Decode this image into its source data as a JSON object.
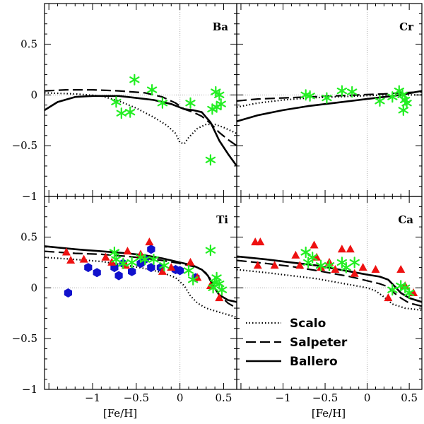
{
  "chart_data": {
    "type": "scatter",
    "xlabel": "[Fe/H]",
    "xlim": [
      -1.55,
      0.65
    ],
    "ylim": [
      -1.0,
      0.9
    ],
    "x_ticks": [
      -1,
      -0.5,
      0,
      0.5
    ],
    "x_tick_labels": [
      "−1",
      "−0.5",
      "0",
      "0.5"
    ],
    "y_ticks": [
      -1,
      -0.5,
      0,
      0.5
    ],
    "y_tick_labels": [
      "−1",
      "−0.5",
      "0",
      "0.5"
    ],
    "colors": {
      "stars": "#22ee22",
      "triangles": "#ee1111",
      "hexagons": "#1111cc"
    },
    "legend": {
      "position": "bottom-right panel",
      "entries": [
        {
          "label": "Scalo",
          "style": "dotted"
        },
        {
          "label": "Salpeter",
          "style": "dashed"
        },
        {
          "label": "Ballero",
          "style": "solid"
        }
      ]
    },
    "panels": [
      {
        "label": "Ba",
        "stars": [
          [
            -0.73,
            -0.07
          ],
          [
            -0.67,
            -0.18
          ],
          [
            -0.57,
            -0.17
          ],
          [
            -0.52,
            0.15
          ],
          [
            -0.32,
            0.05
          ],
          [
            -0.2,
            -0.08
          ],
          [
            0.12,
            -0.08
          ],
          [
            0.35,
            -0.64
          ],
          [
            0.37,
            -0.14
          ],
          [
            0.41,
            0.03
          ],
          [
            0.42,
            -0.12
          ],
          [
            0.45,
            0.0
          ],
          [
            0.47,
            -0.09
          ]
        ],
        "triangles": [],
        "hexagons": [],
        "lines": {
          "scalo": [
            [
              -1.55,
              0.02
            ],
            [
              -1.2,
              0.01
            ],
            [
              -0.9,
              -0.01
            ],
            [
              -0.7,
              -0.06
            ],
            [
              -0.5,
              -0.13
            ],
            [
              -0.3,
              -0.22
            ],
            [
              -0.15,
              -0.3
            ],
            [
              -0.05,
              -0.38
            ],
            [
              0.0,
              -0.47
            ],
            [
              0.05,
              -0.48
            ],
            [
              0.1,
              -0.42
            ],
            [
              0.2,
              -0.33
            ],
            [
              0.3,
              -0.29
            ],
            [
              0.4,
              -0.29
            ],
            [
              0.5,
              -0.32
            ],
            [
              0.65,
              -0.38
            ]
          ],
          "salpeter": [
            [
              -1.55,
              0.04
            ],
            [
              -1.3,
              0.05
            ],
            [
              -1.0,
              0.05
            ],
            [
              -0.7,
              0.04
            ],
            [
              -0.4,
              0.02
            ],
            [
              -0.2,
              -0.02
            ],
            [
              -0.05,
              -0.08
            ],
            [
              0.05,
              -0.14
            ],
            [
              0.15,
              -0.17
            ],
            [
              0.25,
              -0.21
            ],
            [
              0.35,
              -0.28
            ],
            [
              0.45,
              -0.37
            ],
            [
              0.55,
              -0.44
            ],
            [
              0.65,
              -0.5
            ]
          ],
          "ballero": [
            [
              -1.55,
              -0.15
            ],
            [
              -1.4,
              -0.07
            ],
            [
              -1.2,
              -0.02
            ],
            [
              -1.0,
              -0.01
            ],
            [
              -0.7,
              -0.01
            ],
            [
              -0.5,
              -0.03
            ],
            [
              -0.3,
              -0.05
            ],
            [
              -0.1,
              -0.09
            ],
            [
              0.05,
              -0.14
            ],
            [
              0.15,
              -0.15
            ],
            [
              0.25,
              -0.17
            ],
            [
              0.35,
              -0.27
            ],
            [
              0.45,
              -0.45
            ],
            [
              0.55,
              -0.58
            ],
            [
              0.65,
              -0.7
            ]
          ]
        }
      },
      {
        "label": "Cr",
        "stars": [
          [
            -0.73,
            0.0
          ],
          [
            -0.68,
            -0.01
          ],
          [
            -0.48,
            -0.03
          ],
          [
            -0.3,
            0.04
          ],
          [
            -0.18,
            0.03
          ],
          [
            0.15,
            -0.06
          ],
          [
            0.3,
            -0.02
          ],
          [
            0.38,
            0.04
          ],
          [
            0.42,
            0.0
          ],
          [
            0.43,
            -0.15
          ],
          [
            0.45,
            -0.05
          ],
          [
            0.47,
            -0.08
          ]
        ],
        "triangles": [],
        "hexagons": [],
        "lines": {
          "scalo": [
            [
              -1.55,
              -0.12
            ],
            [
              -1.3,
              -0.08
            ],
            [
              -1.0,
              -0.05
            ],
            [
              -0.7,
              -0.03
            ],
            [
              -0.4,
              -0.02
            ],
            [
              -0.1,
              -0.01
            ],
            [
              0.2,
              0.0
            ],
            [
              0.4,
              0.0
            ],
            [
              0.65,
              0.0
            ]
          ],
          "salpeter": [
            [
              -1.55,
              -0.06
            ],
            [
              -1.3,
              -0.04
            ],
            [
              -1.0,
              -0.03
            ],
            [
              -0.7,
              -0.02
            ],
            [
              -0.4,
              -0.01
            ],
            [
              -0.1,
              0.0
            ],
            [
              0.2,
              0.01
            ],
            [
              0.4,
              0.02
            ],
            [
              0.65,
              0.03
            ]
          ],
          "ballero": [
            [
              -1.55,
              -0.26
            ],
            [
              -1.3,
              -0.2
            ],
            [
              -1.0,
              -0.15
            ],
            [
              -0.7,
              -0.11
            ],
            [
              -0.4,
              -0.08
            ],
            [
              -0.1,
              -0.05
            ],
            [
              0.2,
              -0.02
            ],
            [
              0.4,
              0.0
            ],
            [
              0.65,
              0.04
            ]
          ]
        }
      },
      {
        "label": "Ti",
        "stars": [
          [
            -0.75,
            0.35
          ],
          [
            -0.73,
            0.28
          ],
          [
            -0.65,
            0.24
          ],
          [
            -0.55,
            0.25
          ],
          [
            -0.45,
            0.3
          ],
          [
            -0.4,
            0.28
          ],
          [
            -0.3,
            0.28
          ],
          [
            -0.18,
            0.22
          ],
          [
            0.1,
            0.17
          ],
          [
            0.15,
            0.08
          ],
          [
            0.35,
            0.37
          ],
          [
            0.38,
            0.0
          ],
          [
            0.4,
            0.05
          ],
          [
            0.42,
            0.1
          ],
          [
            0.45,
            0.04
          ],
          [
            0.48,
            -0.02
          ]
        ],
        "triangles": [
          [
            -1.3,
            0.35
          ],
          [
            -1.25,
            0.27
          ],
          [
            -1.1,
            0.28
          ],
          [
            -0.85,
            0.3
          ],
          [
            -0.78,
            0.25
          ],
          [
            -0.62,
            0.22
          ],
          [
            -0.6,
            0.36
          ],
          [
            -0.45,
            0.33
          ],
          [
            -0.35,
            0.45
          ],
          [
            -0.2,
            0.16
          ],
          [
            -0.1,
            0.2
          ],
          [
            0.12,
            0.25
          ],
          [
            0.2,
            0.1
          ],
          [
            0.35,
            0.02
          ],
          [
            0.45,
            -0.1
          ]
        ],
        "hexagons": [
          [
            -1.28,
            -0.05
          ],
          [
            -1.05,
            0.2
          ],
          [
            -0.95,
            0.15
          ],
          [
            -0.75,
            0.2
          ],
          [
            -0.7,
            0.12
          ],
          [
            -0.65,
            0.24
          ],
          [
            -0.55,
            0.16
          ],
          [
            -0.45,
            0.24
          ],
          [
            -0.4,
            0.28
          ],
          [
            -0.33,
            0.38
          ],
          [
            -0.33,
            0.2
          ],
          [
            -0.22,
            0.2
          ],
          [
            -0.05,
            0.18
          ],
          [
            0.0,
            0.17
          ],
          [
            0.18,
            0.1
          ]
        ],
        "lines": {
          "scalo": [
            [
              -1.55,
              0.3
            ],
            [
              -1.2,
              0.28
            ],
            [
              -0.9,
              0.26
            ],
            [
              -0.6,
              0.22
            ],
            [
              -0.4,
              0.19
            ],
            [
              -0.2,
              0.15
            ],
            [
              -0.05,
              0.1
            ],
            [
              0.05,
              0.02
            ],
            [
              0.12,
              -0.08
            ],
            [
              0.2,
              -0.15
            ],
            [
              0.3,
              -0.2
            ],
            [
              0.45,
              -0.24
            ],
            [
              0.65,
              -0.29
            ]
          ],
          "salpeter": [
            [
              -1.55,
              0.36
            ],
            [
              -1.2,
              0.34
            ],
            [
              -0.9,
              0.33
            ],
            [
              -0.6,
              0.31
            ],
            [
              -0.4,
              0.29
            ],
            [
              -0.2,
              0.27
            ],
            [
              0.0,
              0.24
            ],
            [
              0.15,
              0.21
            ],
            [
              0.25,
              0.18
            ],
            [
              0.32,
              0.13
            ],
            [
              0.38,
              0.03
            ],
            [
              0.45,
              -0.07
            ],
            [
              0.55,
              -0.15
            ],
            [
              0.65,
              -0.2
            ]
          ],
          "ballero": [
            [
              -1.55,
              0.41
            ],
            [
              -1.2,
              0.38
            ],
            [
              -0.9,
              0.36
            ],
            [
              -0.6,
              0.34
            ],
            [
              -0.4,
              0.32
            ],
            [
              -0.2,
              0.29
            ],
            [
              0.0,
              0.25
            ],
            [
              0.15,
              0.22
            ],
            [
              0.25,
              0.18
            ],
            [
              0.32,
              0.12
            ],
            [
              0.38,
              0.02
            ],
            [
              0.45,
              -0.07
            ],
            [
              0.55,
              -0.12
            ],
            [
              0.65,
              -0.14
            ]
          ]
        }
      },
      {
        "label": "Ca",
        "stars": [
          [
            -0.73,
            0.35
          ],
          [
            -0.7,
            0.25
          ],
          [
            -0.65,
            0.3
          ],
          [
            -0.55,
            0.22
          ],
          [
            -0.45,
            0.22
          ],
          [
            -0.3,
            0.25
          ],
          [
            -0.25,
            0.2
          ],
          [
            -0.15,
            0.25
          ],
          [
            0.3,
            -0.02
          ],
          [
            0.4,
            0.02
          ],
          [
            0.45,
            0.0
          ],
          [
            0.5,
            -0.05
          ]
        ],
        "triangles": [
          [
            -1.33,
            0.45
          ],
          [
            -1.27,
            0.45
          ],
          [
            -1.3,
            0.22
          ],
          [
            -1.1,
            0.22
          ],
          [
            -0.85,
            0.32
          ],
          [
            -0.8,
            0.22
          ],
          [
            -0.63,
            0.42
          ],
          [
            -0.6,
            0.3
          ],
          [
            -0.55,
            0.2
          ],
          [
            -0.45,
            0.25
          ],
          [
            -0.38,
            0.18
          ],
          [
            -0.3,
            0.38
          ],
          [
            -0.2,
            0.38
          ],
          [
            -0.15,
            0.14
          ],
          [
            -0.05,
            0.2
          ],
          [
            0.1,
            0.18
          ],
          [
            0.25,
            -0.1
          ],
          [
            0.4,
            0.18
          ],
          [
            0.45,
            0.02
          ],
          [
            0.55,
            -0.05
          ]
        ],
        "hexagons": [],
        "lines": {
          "scalo": [
            [
              -1.55,
              0.18
            ],
            [
              -1.2,
              0.15
            ],
            [
              -0.9,
              0.12
            ],
            [
              -0.6,
              0.09
            ],
            [
              -0.4,
              0.06
            ],
            [
              -0.2,
              0.03
            ],
            [
              0.0,
              0.0
            ],
            [
              0.1,
              -0.03
            ],
            [
              0.2,
              -0.09
            ],
            [
              0.3,
              -0.16
            ],
            [
              0.45,
              -0.2
            ],
            [
              0.65,
              -0.22
            ]
          ],
          "salpeter": [
            [
              -1.55,
              0.27
            ],
            [
              -1.2,
              0.24
            ],
            [
              -0.9,
              0.21
            ],
            [
              -0.6,
              0.17
            ],
            [
              -0.4,
              0.14
            ],
            [
              -0.2,
              0.11
            ],
            [
              0.0,
              0.07
            ],
            [
              0.15,
              0.04
            ],
            [
              0.25,
              0.01
            ],
            [
              0.32,
              -0.05
            ],
            [
              0.4,
              -0.1
            ],
            [
              0.5,
              -0.15
            ],
            [
              0.65,
              -0.18
            ]
          ],
          "ballero": [
            [
              -1.55,
              0.31
            ],
            [
              -1.2,
              0.28
            ],
            [
              -0.9,
              0.25
            ],
            [
              -0.6,
              0.22
            ],
            [
              -0.4,
              0.19
            ],
            [
              -0.2,
              0.16
            ],
            [
              0.0,
              0.13
            ],
            [
              0.15,
              0.11
            ],
            [
              0.25,
              0.08
            ],
            [
              0.32,
              0.02
            ],
            [
              0.4,
              -0.05
            ],
            [
              0.5,
              -0.1
            ],
            [
              0.65,
              -0.14
            ]
          ]
        }
      }
    ]
  }
}
